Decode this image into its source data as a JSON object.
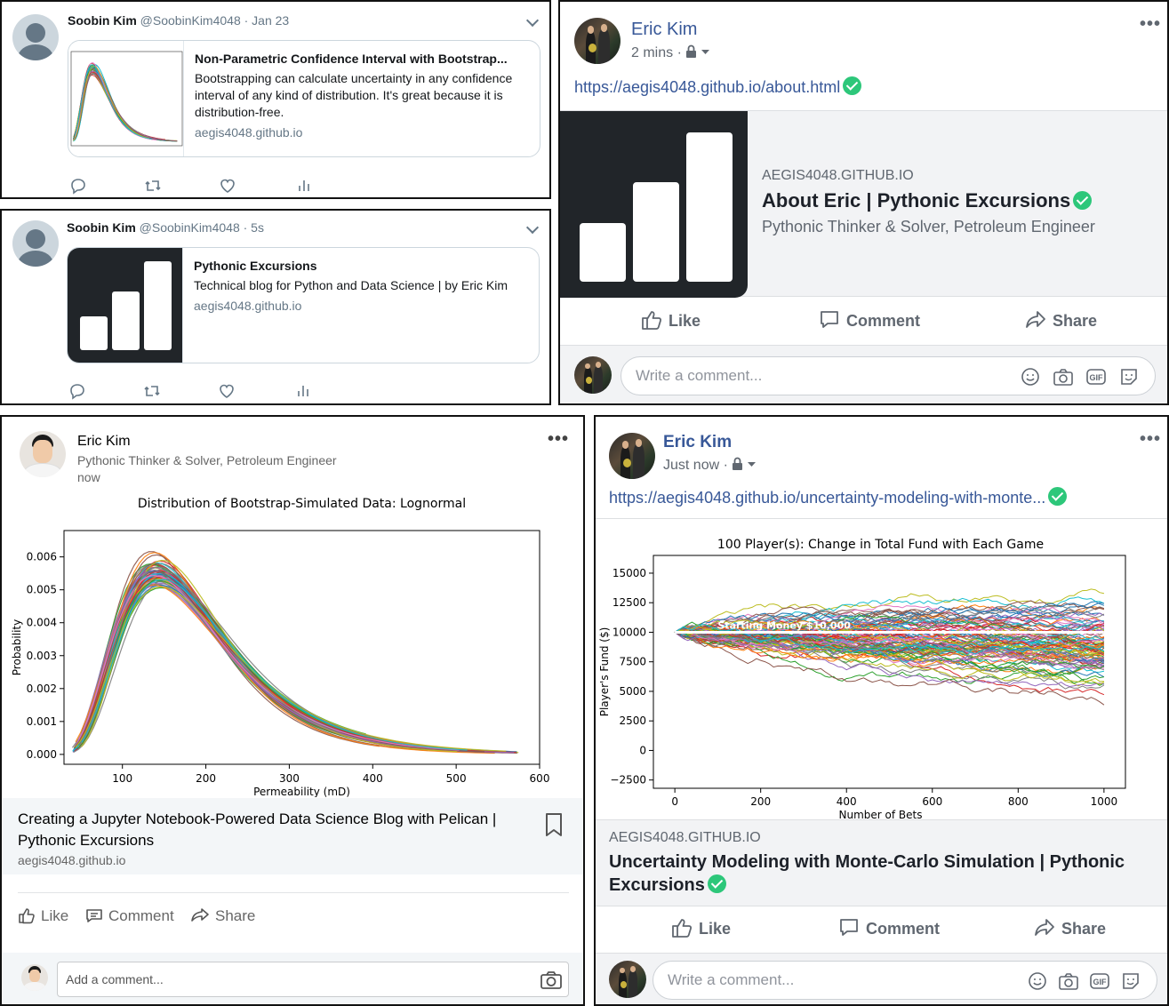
{
  "tweets": [
    {
      "author_name": "Soobin Kim",
      "handle": "@SoobinKim4048",
      "time": "· Jan 23",
      "card_title": "Non-Parametric Confidence Interval with Bootstrap...",
      "card_desc": "Bootstrapping can calculate uncertainty in any confidence interval of any kind of distribution. It's great because it is distribution-free.",
      "card_domain": "aegis4048.github.io"
    },
    {
      "author_name": "Soobin Kim",
      "handle": "@SoobinKim4048",
      "time": "· 5s",
      "card_title": "Pythonic Excursions",
      "card_desc": "Technical blog for Python and Data Science | by Eric Kim",
      "card_domain": "aegis4048.github.io"
    }
  ],
  "fb_post_1": {
    "author": "Eric Kim",
    "time": "2 mins ·",
    "link": "https://aegis4048.github.io/about.html",
    "site": "AEGIS4048.GITHUB.IO",
    "title": "About Eric | Pythonic Excursions",
    "desc": "Pythonic Thinker & Solver, Petroleum Engineer",
    "like": "Like",
    "comment": "Comment",
    "share": "Share",
    "comment_placeholder": "Write a comment..."
  },
  "fb_post_2": {
    "author": "Eric Kim",
    "time": "Just now ·",
    "link": "https://aegis4048.github.io/uncertainty-modeling-with-monte...",
    "site": "AEGIS4048.GITHUB.IO",
    "title": "Uncertainty Modeling with Monte-Carlo Simulation | Pythonic Excursions",
    "like": "Like",
    "comment": "Comment",
    "share": "Share",
    "comment_placeholder": "Write a comment..."
  },
  "linkedin": {
    "author": "Eric Kim",
    "headline": "Pythonic Thinker & Solver, Petroleum Engineer",
    "time": "now",
    "article_title": "Creating a Jupyter Notebook-Powered Data Science Blog with Pelican | Pythonic Excursions",
    "article_domain": "aegis4048.github.io",
    "like": "Like",
    "comment": "Comment",
    "share": "Share",
    "comment_placeholder": "Add a comment..."
  },
  "colors": {
    "fb_blue": "#385898",
    "verified_green": "#2dc77a",
    "twitter_gray": "#657786",
    "dark_tile": "#212529"
  },
  "chart_data": [
    {
      "type": "line",
      "title": "Distribution of Bootstrap-Simulated Data: Lognormal",
      "xlabel": "Permeability (mD)",
      "ylabel": "Probability",
      "xlim": [
        30,
        600
      ],
      "ylim": [
        -0.0003,
        0.0068
      ],
      "xticks": [
        100,
        200,
        300,
        400,
        500,
        600
      ],
      "yticks": [
        0.0,
        0.001,
        0.002,
        0.003,
        0.004,
        0.005,
        0.006
      ],
      "ytick_labels": [
        "0.000",
        "0.001",
        "0.002",
        "0.003",
        "0.004",
        "0.005",
        "0.006"
      ],
      "series_count": 60,
      "grid": false,
      "representative_series": [
        {
          "x": [
            40,
            60,
            100,
            150,
            200,
            250,
            300,
            350,
            400,
            500,
            575
          ],
          "y": [
            0.0017,
            0.0032,
            0.0052,
            0.0058,
            0.0048,
            0.003,
            0.0016,
            0.0009,
            0.0006,
            0.0003,
            0.0
          ]
        }
      ]
    },
    {
      "type": "line",
      "title": "100 Player(s): Change in Total Fund with Each Game",
      "xlabel": "Number of Bets",
      "ylabel": "Player's Fund ($)",
      "xlim": [
        -50,
        1050
      ],
      "ylim": [
        -3200,
        16500
      ],
      "xticks": [
        0,
        200,
        400,
        600,
        800,
        1000
      ],
      "yticks": [
        -2500,
        0,
        2500,
        5000,
        7500,
        10000,
        12500,
        15000
      ],
      "ytick_labels": [
        "−2500",
        "0",
        "2500",
        "5000",
        "7500",
        "10000",
        "12500",
        "15000"
      ],
      "annotation": "Starting Money $10,000",
      "series_count": 100,
      "grid": false
    }
  ]
}
